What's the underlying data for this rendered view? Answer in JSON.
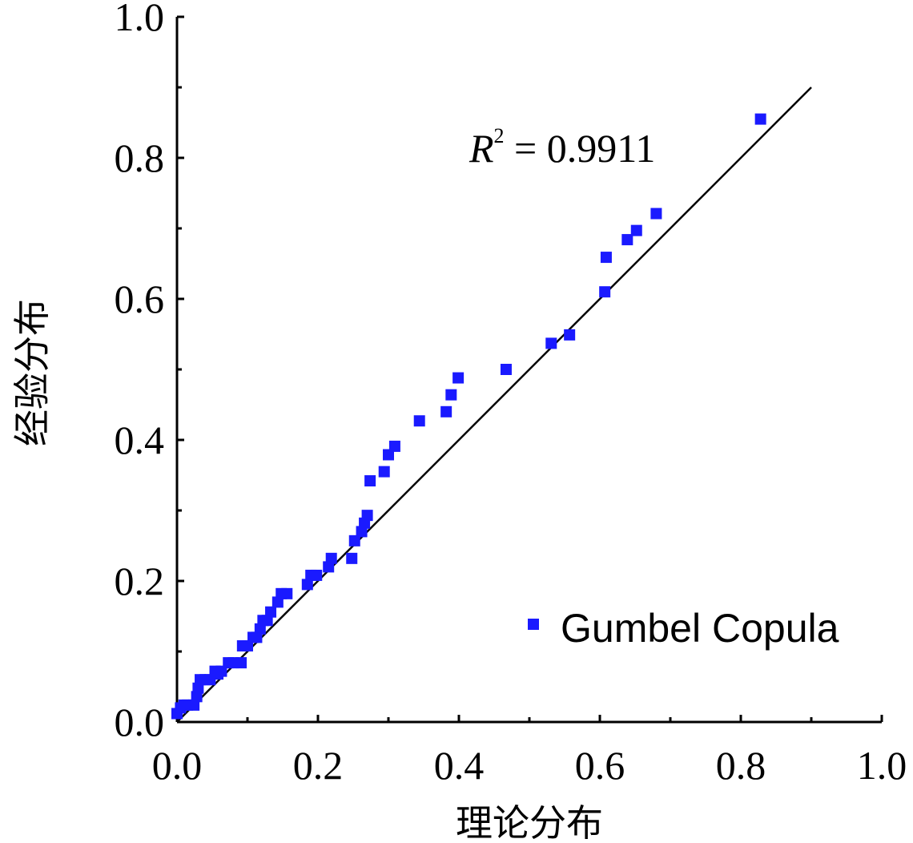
{
  "chart_data": {
    "type": "scatter",
    "xlabel": "理论分布",
    "ylabel": "经验分布",
    "xlim": [
      0,
      1.0
    ],
    "ylim": [
      0,
      1.0
    ],
    "xticks": [
      "0.0",
      "0.2",
      "0.4",
      "0.6",
      "0.8",
      "1.0"
    ],
    "yticks": [
      "0.0",
      "0.2",
      "0.4",
      "0.6",
      "0.8",
      "1.0"
    ],
    "grid": false,
    "legend_position": "bottom-right",
    "series": [
      {
        "name": "Gumbel Copula",
        "color": "#1a1aff",
        "points": [
          [
            0.0,
            0.012
          ],
          [
            0.005,
            0.02
          ],
          [
            0.01,
            0.024
          ],
          [
            0.015,
            0.024
          ],
          [
            0.024,
            0.024
          ],
          [
            0.028,
            0.036
          ],
          [
            0.03,
            0.048
          ],
          [
            0.033,
            0.06
          ],
          [
            0.04,
            0.06
          ],
          [
            0.047,
            0.06
          ],
          [
            0.054,
            0.072
          ],
          [
            0.058,
            0.068
          ],
          [
            0.063,
            0.072
          ],
          [
            0.073,
            0.084
          ],
          [
            0.08,
            0.084
          ],
          [
            0.091,
            0.084
          ],
          [
            0.093,
            0.108
          ],
          [
            0.1,
            0.108
          ],
          [
            0.108,
            0.12
          ],
          [
            0.113,
            0.12
          ],
          [
            0.118,
            0.132
          ],
          [
            0.122,
            0.144
          ],
          [
            0.128,
            0.144
          ],
          [
            0.133,
            0.156
          ],
          [
            0.143,
            0.17
          ],
          [
            0.148,
            0.182
          ],
          [
            0.156,
            0.182
          ],
          [
            0.185,
            0.195
          ],
          [
            0.19,
            0.208
          ],
          [
            0.198,
            0.208
          ],
          [
            0.215,
            0.22
          ],
          [
            0.219,
            0.232
          ],
          [
            0.248,
            0.232
          ],
          [
            0.252,
            0.257
          ],
          [
            0.262,
            0.27
          ],
          [
            0.266,
            0.282
          ],
          [
            0.27,
            0.293
          ],
          [
            0.274,
            0.342
          ],
          [
            0.294,
            0.355
          ],
          [
            0.3,
            0.379
          ],
          [
            0.309,
            0.391
          ],
          [
            0.344,
            0.427
          ],
          [
            0.382,
            0.44
          ],
          [
            0.389,
            0.464
          ],
          [
            0.399,
            0.488
          ],
          [
            0.467,
            0.5
          ],
          [
            0.531,
            0.537
          ],
          [
            0.557,
            0.549
          ],
          [
            0.607,
            0.61
          ],
          [
            0.609,
            0.659
          ],
          [
            0.639,
            0.684
          ],
          [
            0.652,
            0.697
          ],
          [
            0.68,
            0.721
          ],
          [
            0.828,
            0.855
          ]
        ]
      }
    ],
    "fit_line": {
      "from": [
        0,
        0
      ],
      "to": [
        0.9,
        0.9
      ]
    },
    "annotation": {
      "symbol": "R",
      "superscript": "2",
      "text": " = 0.9911"
    }
  }
}
